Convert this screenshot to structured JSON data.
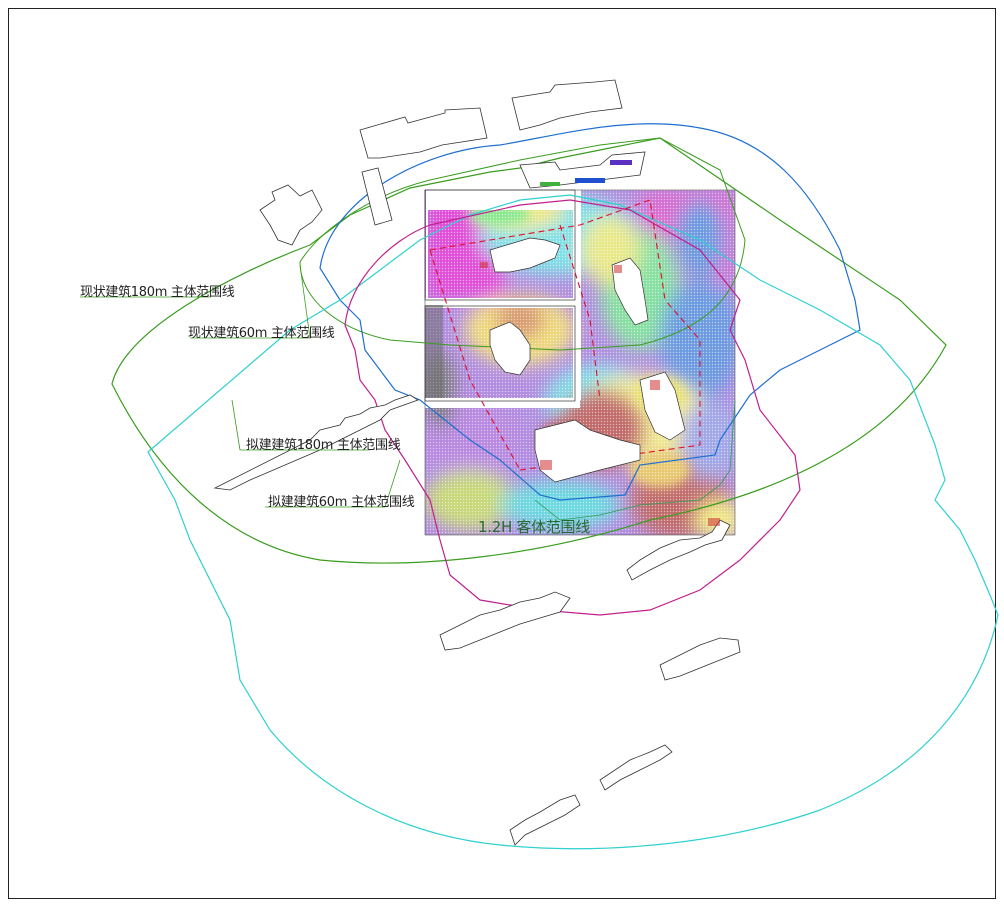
{
  "drawing": {
    "labels": {
      "existing_180": "现状建筑180m 主体范围线",
      "existing_60": "现状建筑60m 主体范围线",
      "proposed_180": "拟建建筑180m 主体范围线",
      "proposed_60": "拟建建筑60m 主体范围线",
      "object_range": "1.2H 客体范围线"
    },
    "colors": {
      "existing_180": "#3a9d1f",
      "existing_60": "#2a7fd4",
      "proposed_180": "#2fd0d0",
      "proposed_60": "#c0208e",
      "red_dash": "#e0102a"
    }
  }
}
